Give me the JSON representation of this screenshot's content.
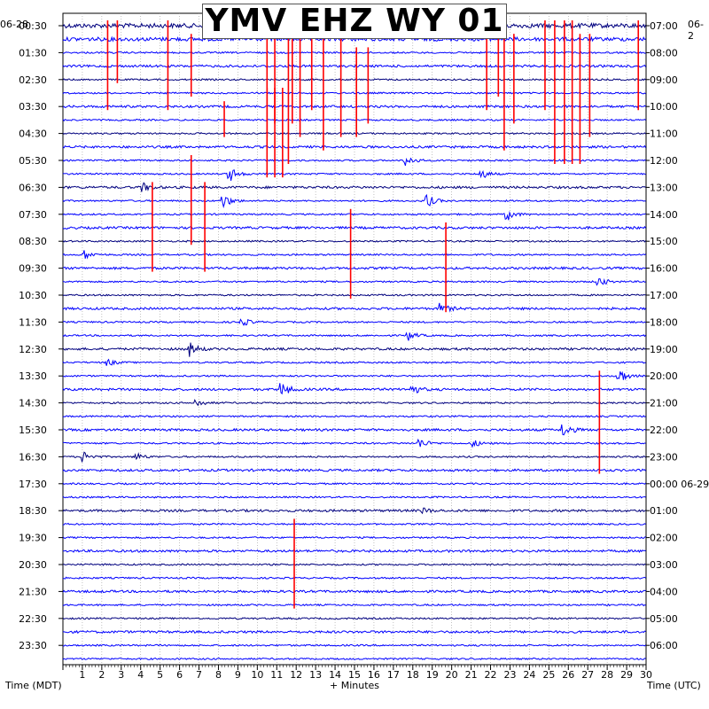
{
  "header": {
    "title": "YMV EHZ WY 01",
    "date_left": "06-28",
    "date_right": "06-2"
  },
  "axes": {
    "left_label": "Time (MDT)",
    "right_label": "Time (UTC)",
    "bottom_label": "+ Minutes"
  },
  "colors": {
    "trace_a": "#0000ff",
    "trace_b": "#00007f",
    "saturated": "#ff0000",
    "grid": "#999999",
    "background": "#ffffff"
  },
  "chart_data": {
    "type": "heatmap",
    "description_kind": "helicorder",
    "x_range": [
      0,
      30
    ],
    "x_ticks": [
      "1",
      "2",
      "3",
      "4",
      "5",
      "6",
      "7",
      "8",
      "9",
      "10",
      "11",
      "12",
      "13",
      "14",
      "15",
      "16",
      "17",
      "18",
      "19",
      "20",
      "21",
      "22",
      "23",
      "24",
      "25",
      "26",
      "27",
      "28",
      "29",
      "30"
    ],
    "left_time_labels": [
      "00:30",
      "01:30",
      "02:30",
      "03:30",
      "04:30",
      "05:30",
      "06:30",
      "07:30",
      "08:30",
      "09:30",
      "10:30",
      "11:30",
      "12:30",
      "13:30",
      "14:30",
      "15:30",
      "16:30",
      "17:30",
      "18:30",
      "19:30",
      "20:30",
      "21:30",
      "22:30",
      "23:30"
    ],
    "right_time_labels": [
      "07:00",
      "08:00",
      "09:00",
      "10:00",
      "11:00",
      "12:00",
      "13:00",
      "14:00",
      "15:00",
      "16:00",
      "17:00",
      "18:00",
      "19:00",
      "20:00",
      "21:00",
      "22:00",
      "23:00",
      "00:00 06-29",
      "01:00",
      "02:00",
      "03:00",
      "04:00",
      "05:00",
      "06:00"
    ],
    "trace_count": 48,
    "events": [
      {
        "row": 12,
        "minute": 4.1,
        "amp": 5
      },
      {
        "row": 13,
        "minute": 8.3,
        "amp": 7
      },
      {
        "row": 11,
        "minute": 8.6,
        "amp": 8
      },
      {
        "row": 10,
        "minute": 17.7,
        "amp": 6
      },
      {
        "row": 11,
        "minute": 21.5,
        "amp": 6
      },
      {
        "row": 13,
        "minute": 18.7,
        "amp": 8
      },
      {
        "row": 14,
        "minute": 22.9,
        "amp": 6
      },
      {
        "row": 17,
        "minute": 1.1,
        "amp": 5
      },
      {
        "row": 19,
        "minute": 27.6,
        "amp": 5
      },
      {
        "row": 21,
        "minute": 19.5,
        "amp": 5
      },
      {
        "row": 22,
        "minute": 9.2,
        "amp": 5
      },
      {
        "row": 23,
        "minute": 17.8,
        "amp": 5
      },
      {
        "row": 24,
        "minute": 6.5,
        "amp": 8
      },
      {
        "row": 25,
        "minute": 2.3,
        "amp": 4
      },
      {
        "row": 26,
        "minute": 28.6,
        "amp": 9
      },
      {
        "row": 27,
        "minute": 11.3,
        "amp": 7
      },
      {
        "row": 27,
        "minute": 18.0,
        "amp": 5
      },
      {
        "row": 28,
        "minute": 6.9,
        "amp": 4
      },
      {
        "row": 30,
        "minute": 25.8,
        "amp": 7
      },
      {
        "row": 31,
        "minute": 18.4,
        "amp": 5
      },
      {
        "row": 31,
        "minute": 21.1,
        "amp": 4
      },
      {
        "row": 32,
        "minute": 1.1,
        "amp": 6
      },
      {
        "row": 32,
        "minute": 3.8,
        "amp": 4
      },
      {
        "row": 36,
        "minute": 18.5,
        "amp": 3
      }
    ],
    "clipped_segments": [
      {
        "row": 0,
        "minute": 2.3,
        "rows_down": 6
      },
      {
        "row": 0,
        "minute": 2.8,
        "rows_down": 4
      },
      {
        "row": 0,
        "minute": 5.4,
        "rows_down": 6
      },
      {
        "row": 1,
        "minute": 6.6,
        "rows_down": 4
      },
      {
        "row": 1,
        "minute": 10.5,
        "rows_down": 7
      },
      {
        "row": 1,
        "minute": 10.9,
        "rows_down": 6
      },
      {
        "row": 1,
        "minute": 11.6,
        "rows_down": 9
      },
      {
        "row": 0,
        "minute": 11.8,
        "rows_down": 7
      },
      {
        "row": 1,
        "minute": 12.2,
        "rows_down": 7
      },
      {
        "row": 1,
        "minute": 12.8,
        "rows_down": 5
      },
      {
        "row": 1,
        "minute": 13.4,
        "rows_down": 8
      },
      {
        "row": 1,
        "minute": 14.3,
        "rows_down": 7
      },
      {
        "row": 2,
        "minute": 15.1,
        "rows_down": 6
      },
      {
        "row": 2,
        "minute": 15.7,
        "rows_down": 5
      },
      {
        "row": 1,
        "minute": 21.8,
        "rows_down": 5
      },
      {
        "row": 0,
        "minute": 22.4,
        "rows_down": 5
      },
      {
        "row": 1,
        "minute": 22.7,
        "rows_down": 8
      },
      {
        "row": 1,
        "minute": 23.2,
        "rows_down": 6
      },
      {
        "row": 0,
        "minute": 24.8,
        "rows_down": 6
      },
      {
        "row": 0,
        "minute": 25.3,
        "rows_down": 10
      },
      {
        "row": 0,
        "minute": 25.8,
        "rows_down": 10
      },
      {
        "row": 0,
        "minute": 26.2,
        "rows_down": 10
      },
      {
        "row": 1,
        "minute": 26.6,
        "rows_down": 9
      },
      {
        "row": 1,
        "minute": 27.1,
        "rows_down": 7
      },
      {
        "row": 0,
        "minute": 29.6,
        "rows_down": 6
      },
      {
        "row": 6,
        "minute": 8.3,
        "rows_down": 2
      },
      {
        "row": 5,
        "minute": 10.5,
        "rows_down": 6
      },
      {
        "row": 5,
        "minute": 10.9,
        "rows_down": 6
      },
      {
        "row": 5,
        "minute": 11.3,
        "rows_down": 6
      },
      {
        "row": 10,
        "minute": 6.6,
        "rows_down": 6
      },
      {
        "row": 12,
        "minute": 4.6,
        "rows_down": 6
      },
      {
        "row": 12,
        "minute": 7.3,
        "rows_down": 6
      },
      {
        "row": 14,
        "minute": 14.8,
        "rows_down": 6
      },
      {
        "row": 15,
        "minute": 19.7,
        "rows_down": 6
      },
      {
        "row": 26,
        "minute": 27.6,
        "rows_down": 7
      },
      {
        "row": 37,
        "minute": 11.9,
        "rows_down": 6
      }
    ]
  }
}
